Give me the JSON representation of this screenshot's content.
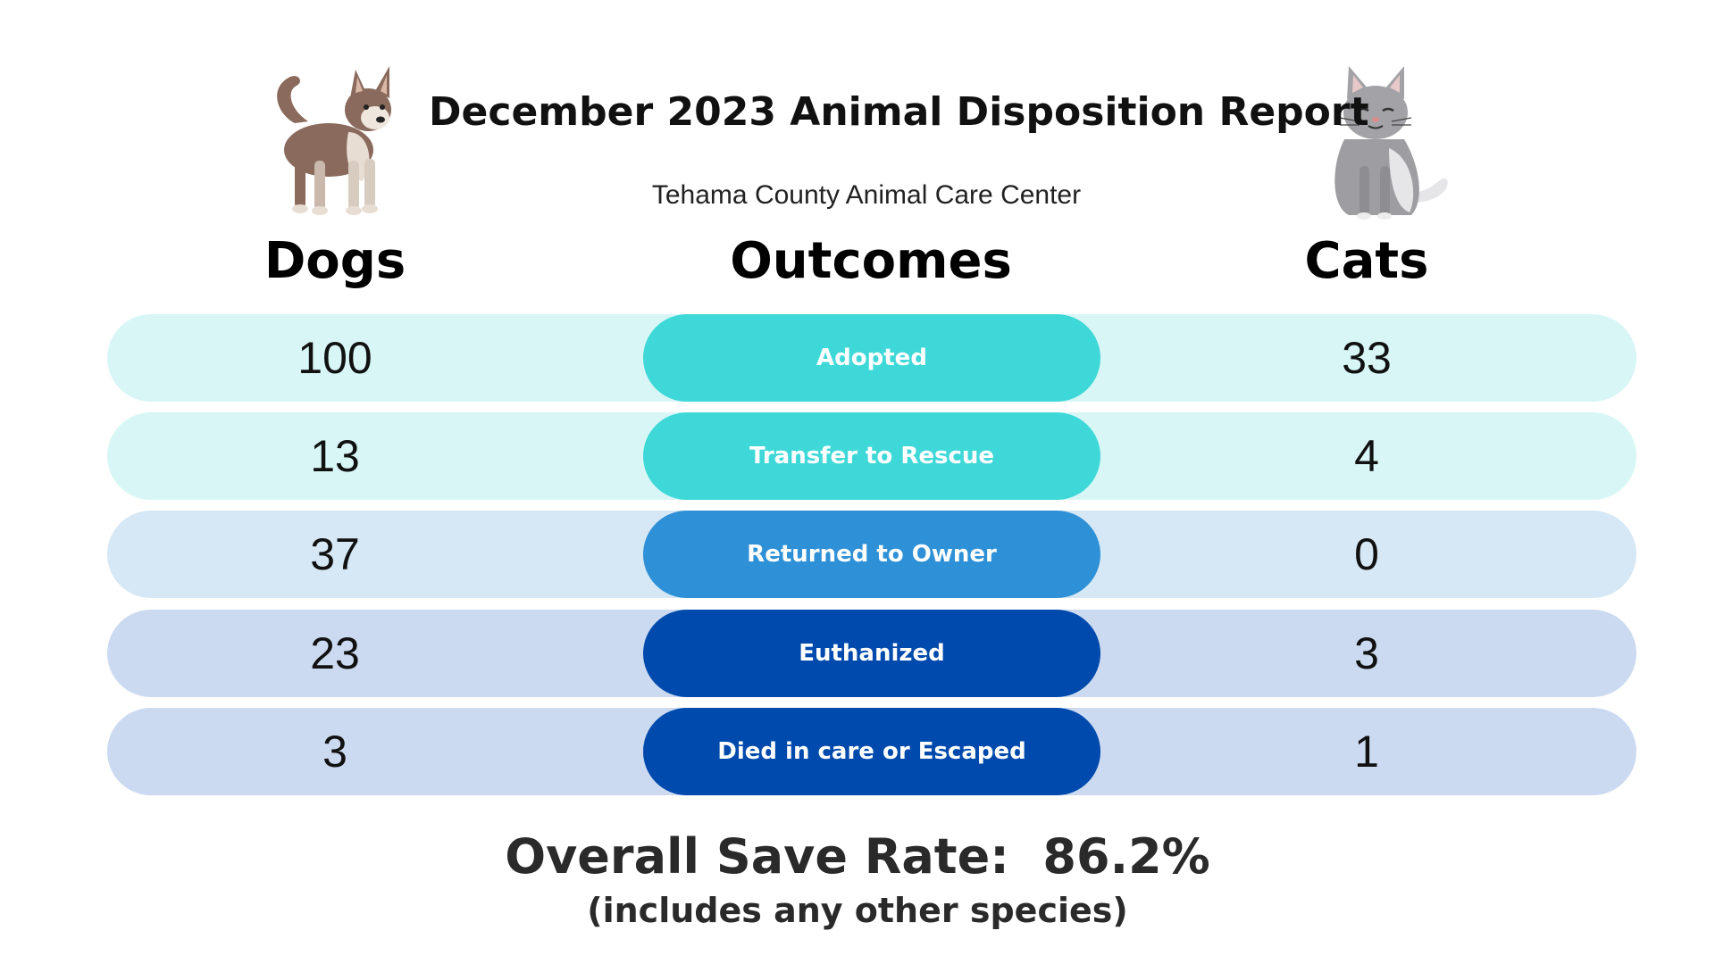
{
  "title": "December 2023 Animal Disposition Report",
  "subtitle": "Tehama County Animal Care Center",
  "columns": {
    "dogs": "Dogs",
    "outcomes": "Outcomes",
    "cats": "Cats"
  },
  "rows": [
    {
      "outcome": "Adopted",
      "dogs": "100",
      "cats": "33",
      "row_color": "#d8f6f6",
      "pill_color": "#3fd8d8"
    },
    {
      "outcome": "Transfer to Rescue",
      "dogs": "13",
      "cats": "4",
      "row_color": "#d8f6f6",
      "pill_color": "#3fd8d8"
    },
    {
      "outcome": "Returned to Owner",
      "dogs": "37",
      "cats": "0",
      "row_color": "#d6e8f5",
      "pill_color": "#2e90d6"
    },
    {
      "outcome": "Euthanized",
      "dogs": "23",
      "cats": "3",
      "row_color": "#cbdaf0",
      "pill_color": "#004aad"
    },
    {
      "outcome": "Died in care or Escaped",
      "dogs": "3",
      "cats": "1",
      "row_color": "#cbdaf0",
      "pill_color": "#004aad"
    }
  ],
  "save_rate": {
    "label": "Overall Save Rate:  86.2%",
    "note": "(includes any other species)"
  },
  "icons": {
    "dog": "dog-illustration",
    "cat": "cat-illustration"
  }
}
